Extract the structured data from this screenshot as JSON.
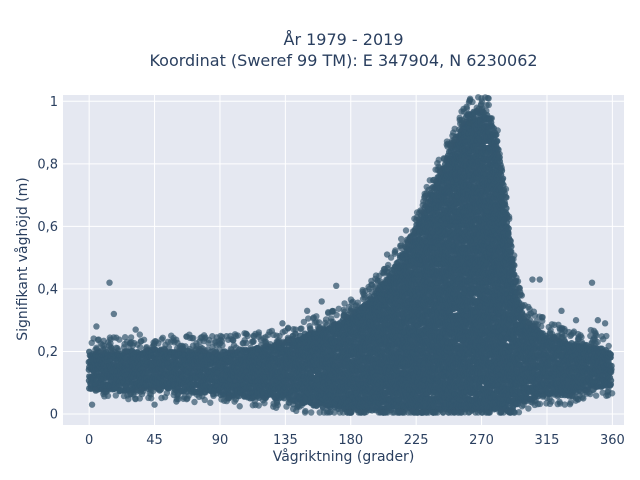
{
  "chart_data": {
    "type": "scatter",
    "title_line1": "År 1979 - 2019",
    "title_line2": "Koordinat (Sweref 99 TM): E 347904, N 6230062",
    "xlabel": "Vågriktning (grader)",
    "ylabel": "Signifikant våghöjd (m)",
    "xlim": [
      -18,
      368
    ],
    "ylim": [
      -0.035,
      1.02
    ],
    "x_ticks": [
      0,
      45,
      90,
      135,
      180,
      225,
      270,
      315,
      360
    ],
    "x_tick_labels": [
      "0",
      "45",
      "90",
      "135",
      "180",
      "225",
      "270",
      "315",
      "360"
    ],
    "y_ticks": [
      0,
      0.2,
      0.4,
      0.6,
      0.8,
      1
    ],
    "y_tick_labels": [
      "0",
      "0,2",
      "0,4",
      "0,6",
      "0,8",
      "1"
    ],
    "grid": true,
    "legend": false,
    "marker_color": "#34576e",
    "plot_background": "#e5e8f1",
    "envelope": {
      "direction": [
        0,
        20,
        45,
        90,
        110,
        135,
        150,
        165,
        180,
        195,
        210,
        225,
        240,
        250,
        255,
        260,
        265,
        270,
        275,
        280,
        285,
        290,
        295,
        300,
        315,
        330,
        345,
        360
      ],
      "lower": [
        0.08,
        0.07,
        0.08,
        0.06,
        0.05,
        0.05,
        0.03,
        0.02,
        0.01,
        0.01,
        0.01,
        0.01,
        0.01,
        0.01,
        0.01,
        0.01,
        0.01,
        0.01,
        0.01,
        0.01,
        0.01,
        0.01,
        0.03,
        0.04,
        0.06,
        0.06,
        0.08,
        0.09
      ],
      "upper": [
        0.2,
        0.2,
        0.21,
        0.2,
        0.21,
        0.23,
        0.26,
        0.28,
        0.32,
        0.38,
        0.47,
        0.6,
        0.76,
        0.86,
        0.91,
        0.96,
        0.97,
        0.97,
        0.96,
        0.9,
        0.75,
        0.55,
        0.38,
        0.3,
        0.25,
        0.23,
        0.22,
        0.2
      ]
    },
    "outliers": [
      {
        "x": 14,
        "y": 0.42
      },
      {
        "x": 17,
        "y": 0.32
      },
      {
        "x": 5,
        "y": 0.28
      },
      {
        "x": 32,
        "y": 0.27
      },
      {
        "x": 262,
        "y": 0.93
      },
      {
        "x": 255,
        "y": 0.94
      },
      {
        "x": 250,
        "y": 0.89
      },
      {
        "x": 346,
        "y": 0.42
      },
      {
        "x": 355,
        "y": 0.29
      },
      {
        "x": 350,
        "y": 0.3
      },
      {
        "x": 310,
        "y": 0.43
      },
      {
        "x": 305,
        "y": 0.43
      },
      {
        "x": 325,
        "y": 0.33
      },
      {
        "x": 170,
        "y": 0.41
      },
      {
        "x": 160,
        "y": 0.36
      },
      {
        "x": 150,
        "y": 0.33
      },
      {
        "x": 133,
        "y": 0.29
      },
      {
        "x": 2,
        "y": 0.03
      },
      {
        "x": 45,
        "y": 0.03
      },
      {
        "x": 60,
        "y": 0.04
      },
      {
        "x": 101,
        "y": 0.25
      },
      {
        "x": 335,
        "y": 0.3
      },
      {
        "x": 340,
        "y": 0.05
      },
      {
        "x": 357,
        "y": 0.06
      },
      {
        "x": 205,
        "y": 0.51
      }
    ]
  }
}
